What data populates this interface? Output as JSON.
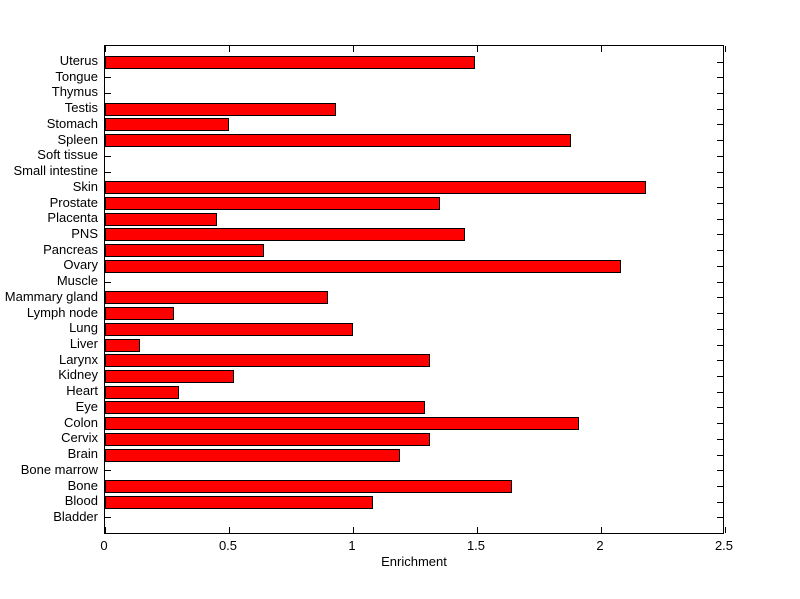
{
  "chart_data": {
    "type": "bar",
    "orientation": "horizontal",
    "title": "",
    "xlabel": "Enrichment",
    "ylabel": "",
    "xlim": [
      0,
      2.5
    ],
    "xticks": [
      0,
      0.5,
      1,
      1.5,
      2,
      2.5
    ],
    "xtick_labels": [
      "0",
      "0.5",
      "1",
      "1.5",
      "2",
      "2.5"
    ],
    "categories": [
      "Uterus",
      "Tongue",
      "Thymus",
      "Testis",
      "Stomach",
      "Spleen",
      "Soft tissue",
      "Small intestine",
      "Skin",
      "Prostate",
      "Placenta",
      "PNS",
      "Pancreas",
      "Ovary",
      "Muscle",
      "Mammary gland",
      "Lymph node",
      "Lung",
      "Liver",
      "Larynx",
      "Kidney",
      "Heart",
      "Eye",
      "Colon",
      "Cervix",
      "Brain",
      "Bone marrow",
      "Bone",
      "Blood",
      "Bladder"
    ],
    "values": [
      1.49,
      0,
      0,
      0.93,
      0.5,
      1.88,
      0,
      0,
      2.18,
      1.35,
      0.45,
      1.45,
      0.64,
      2.08,
      0,
      0.9,
      0.28,
      1.0,
      0.14,
      1.31,
      0.52,
      0.3,
      1.29,
      1.91,
      1.31,
      1.19,
      0,
      1.64,
      1.08,
      0
    ],
    "bar_color": "#ff0000",
    "bar_edge_color": "#000000",
    "axis_color": "#000000",
    "background_color": "#ffffff",
    "grid": false,
    "legend": null,
    "tick_direction": "in"
  }
}
